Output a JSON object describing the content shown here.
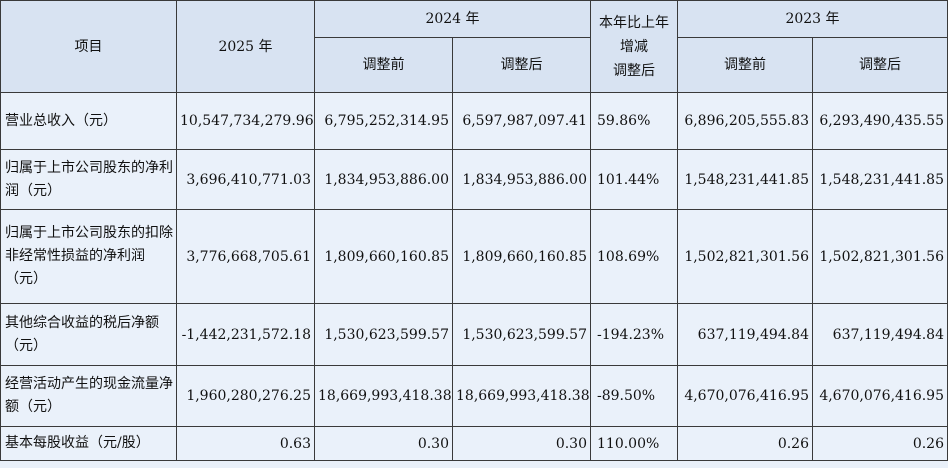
{
  "header": {
    "item": "项目",
    "y2025": "2025 年",
    "y2024": "2024 年",
    "yoy_line1": "本年比上年",
    "yoy_line2": "增减",
    "yoy_line3": "调整后",
    "y2023": "2023 年",
    "before": "调整前",
    "after": "调整后"
  },
  "rows": [
    {
      "label": "营业总收入（元）",
      "v2025": "10,547,734,279.96",
      "v2024_before": "6,795,252,314.95",
      "v2024_after": "6,597,987,097.41",
      "change": "59.86%",
      "v2023_before": "6,896,205,555.83",
      "v2023_after": "6,293,490,435.55"
    },
    {
      "label": "归属于上市公司股东的净利润（元）",
      "v2025": "3,696,410,771.03",
      "v2024_before": "1,834,953,886.00",
      "v2024_after": "1,834,953,886.00",
      "change": "101.44%",
      "v2023_before": "1,548,231,441.85",
      "v2023_after": "1,548,231,441.85"
    },
    {
      "label": "归属于上市公司股东的扣除非经常性损益的净利润（元）",
      "v2025": "3,776,668,705.61",
      "v2024_before": "1,809,660,160.85",
      "v2024_after": "1,809,660,160.85",
      "change": "108.69%",
      "v2023_before": "1,502,821,301.56",
      "v2023_after": "1,502,821,301.56"
    },
    {
      "label": "其他综合收益的税后净额（元）",
      "v2025": "-1,442,231,572.18",
      "v2024_before": "1,530,623,599.57",
      "v2024_after": "1,530,623,599.57",
      "change": "-194.23%",
      "v2023_before": "637,119,494.84",
      "v2023_after": "637,119,494.84"
    },
    {
      "label": "经营活动产生的现金流量净额（元）",
      "v2025": "1,960,280,276.25",
      "v2024_before": "18,669,993,418.38",
      "v2024_after": "18,669,993,418.38",
      "change": "-89.50%",
      "v2023_before": "4,670,076,416.95",
      "v2023_after": "4,670,076,416.95"
    },
    {
      "label": "基本每股收益（元/股）",
      "v2025": "0.63",
      "v2024_before": "0.30",
      "v2024_after": "0.30",
      "change": "110.00%",
      "v2023_before": "0.26",
      "v2023_after": "0.26"
    }
  ]
}
